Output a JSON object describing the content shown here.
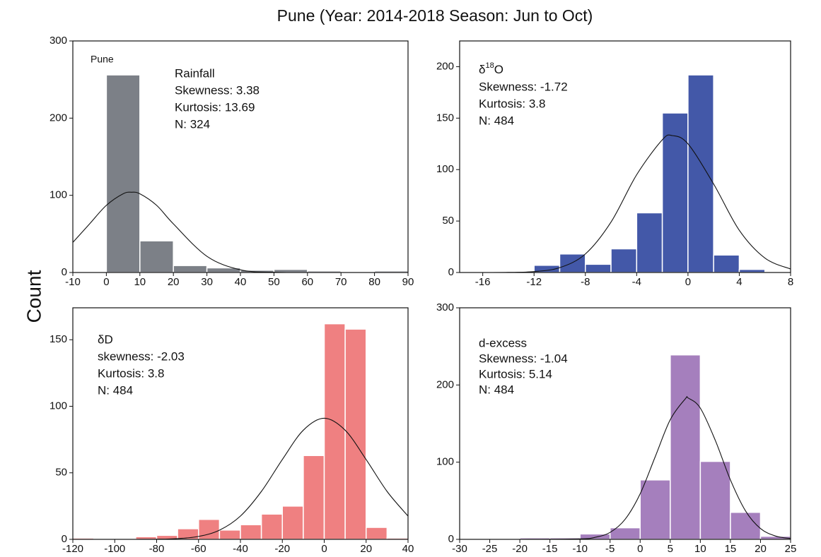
{
  "title": "Pune (Year: 2014-2018 Season: Jun to Oct)",
  "ylabel": "Count",
  "chart_data": [
    {
      "type": "histogram",
      "note": "Pune",
      "name": "Rainfall",
      "stats": [
        "Skewness: 3.38",
        "Kurtosis: 13.69",
        "N: 324"
      ],
      "bins": [
        0,
        10,
        20,
        30,
        40,
        50,
        60,
        70,
        80,
        90
      ],
      "counts": [
        256,
        41,
        9,
        6,
        3,
        4,
        2,
        1,
        2
      ],
      "color": "#7c8087",
      "xlim": [
        -10,
        90
      ],
      "xticks": [
        -10,
        0,
        10,
        20,
        30,
        40,
        50,
        60,
        70,
        80,
        90
      ],
      "ylim": [
        0,
        300
      ],
      "yticks": [
        0,
        100,
        200,
        300
      ],
      "curve": {
        "x": [
          -10,
          -5,
          0,
          5,
          7.5,
          10,
          15,
          20,
          30,
          40,
          50,
          60,
          70,
          80,
          90
        ],
        "values": [
          39,
          63,
          87,
          102,
          104,
          102,
          87,
          63,
          21,
          3.5,
          0.3,
          0,
          0,
          0,
          0
        ]
      }
    },
    {
      "type": "histogram",
      "name_parts": [
        "δ",
        "18",
        "O"
      ],
      "stats": [
        "Skewness: -1.72",
        "Kurtosis: 3.8",
        "N: 484"
      ],
      "bins": [
        -16,
        -14,
        -12,
        -10,
        -8,
        -6,
        -4,
        -2,
        0,
        2,
        4,
        6,
        8
      ],
      "counts": [
        1,
        1,
        7,
        18,
        8,
        23,
        58,
        155,
        192,
        17,
        3,
        1
      ],
      "color": "#4358a8",
      "xlim": [
        -17.8,
        8
      ],
      "xticks": [
        -16,
        -12,
        -8,
        -4,
        0,
        4,
        8
      ],
      "ylim": [
        0,
        225
      ],
      "yticks": [
        0,
        50,
        100,
        150,
        200
      ],
      "curve": {
        "x": [
          -17.8,
          -16,
          -14,
          -12,
          -10,
          -8,
          -6,
          -4,
          -2,
          -1.2,
          0,
          2,
          4,
          6,
          8
        ],
        "values": [
          0,
          0,
          0.1,
          0.9,
          4.7,
          18,
          49,
          95,
          129,
          133,
          125,
          86,
          41,
          14,
          3.4
        ]
      }
    },
    {
      "type": "histogram",
      "name": "δD",
      "stats": [
        "skewness: -2.03",
        "Kurtosis: 3.8",
        "N: 484"
      ],
      "bins": [
        -120,
        -110,
        -100,
        -90,
        -80,
        -70,
        -60,
        -50,
        -40,
        -30,
        -20,
        -10,
        0,
        10,
        20,
        30,
        40
      ],
      "counts": [
        1,
        0,
        0,
        2,
        3,
        8,
        15,
        7,
        11,
        19,
        25,
        63,
        162,
        158,
        9,
        1
      ],
      "color": "#ef8081",
      "xlim": [
        -120,
        40
      ],
      "xticks": [
        -120,
        -100,
        -80,
        -60,
        -40,
        -20,
        0,
        20,
        40
      ],
      "ylim": [
        0,
        174
      ],
      "yticks": [
        0,
        50,
        100,
        150
      ],
      "curve": {
        "x": [
          -120,
          -110,
          -100,
          -90,
          -80,
          -70,
          -60,
          -50,
          -40,
          -30,
          -20,
          -10,
          0,
          10,
          20,
          30,
          40
        ],
        "values": [
          0,
          0,
          0,
          0,
          0.1,
          0.6,
          2.2,
          6.9,
          17.5,
          36,
          60,
          82,
          91,
          82,
          60,
          36,
          17.5
        ]
      }
    },
    {
      "type": "histogram",
      "name": "d-excess",
      "stats": [
        "Skewness: -1.04",
        "Kurtosis: 5.14",
        "N: 484"
      ],
      "bins": [
        -30,
        -25,
        -20,
        -15,
        -10,
        -5,
        0,
        5,
        10,
        15,
        20,
        25
      ],
      "counts": [
        1,
        1,
        2,
        2,
        7,
        15,
        77,
        239,
        101,
        35,
        4
      ],
      "color": "#a57fbd",
      "xlim": [
        -30,
        25
      ],
      "xticks": [
        -30,
        -25,
        -20,
        -15,
        -10,
        -5,
        0,
        5,
        10,
        15,
        20,
        25
      ],
      "ylim": [
        0,
        300
      ],
      "yticks": [
        0,
        100,
        200,
        300
      ],
      "curve": {
        "x": [
          -30,
          -20,
          -10,
          -7.5,
          -5,
          -2.5,
          0,
          2.5,
          5,
          7.5,
          8,
          10,
          12.5,
          15,
          17.5,
          20,
          22.5,
          25
        ],
        "values": [
          0,
          0,
          0.6,
          2.6,
          9,
          26,
          59,
          107,
          155,
          182,
          183,
          170,
          128,
          77,
          37,
          14,
          4.3,
          1.1
        ]
      }
    }
  ]
}
